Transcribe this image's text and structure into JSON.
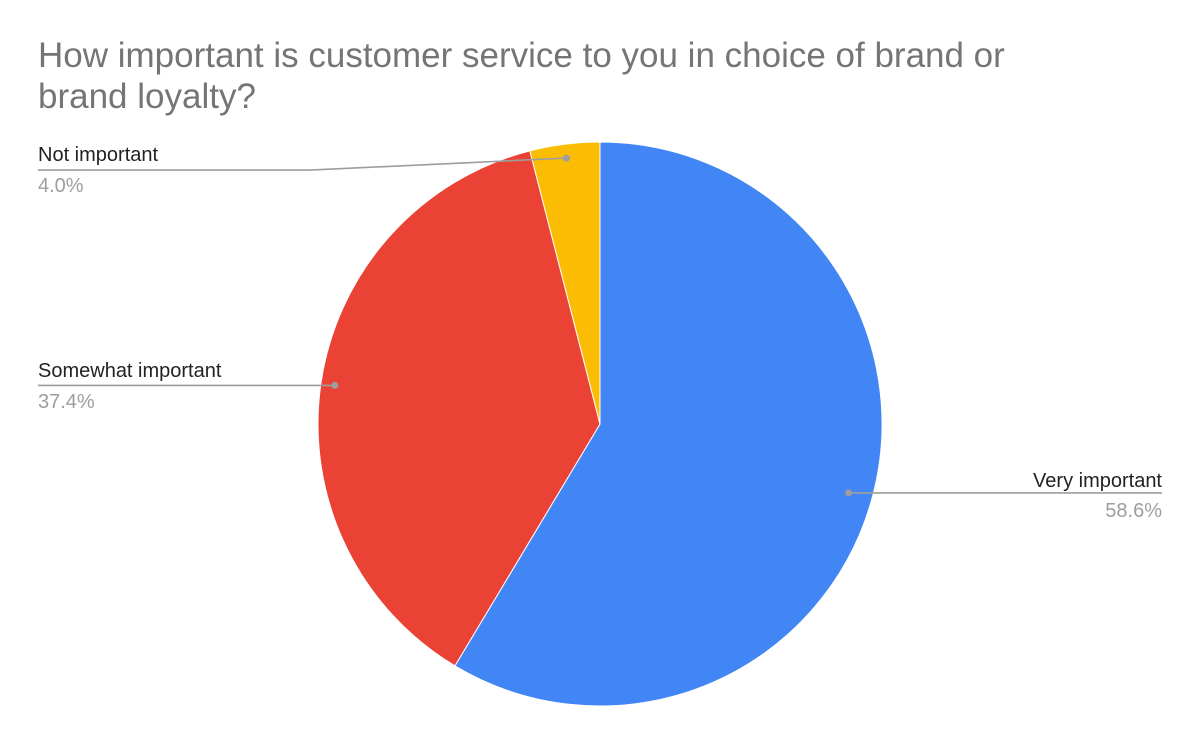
{
  "chart_data": {
    "type": "pie",
    "title_lines": [
      "How important is customer service to you in choice of brand or",
      "brand loyalty?"
    ],
    "start_angle_deg": 0,
    "slices": [
      {
        "label": "Very important",
        "value": 58.6,
        "percent_label": "58.6%",
        "color": "#4285F4"
      },
      {
        "label": "Somewhat important",
        "value": 37.4,
        "percent_label": "37.4%",
        "color": "#EA4335"
      },
      {
        "label": "Not important",
        "value": 4.0,
        "percent_label": "4.0%",
        "color": "#FBBC04"
      }
    ],
    "legend": "labeled-slices"
  }
}
